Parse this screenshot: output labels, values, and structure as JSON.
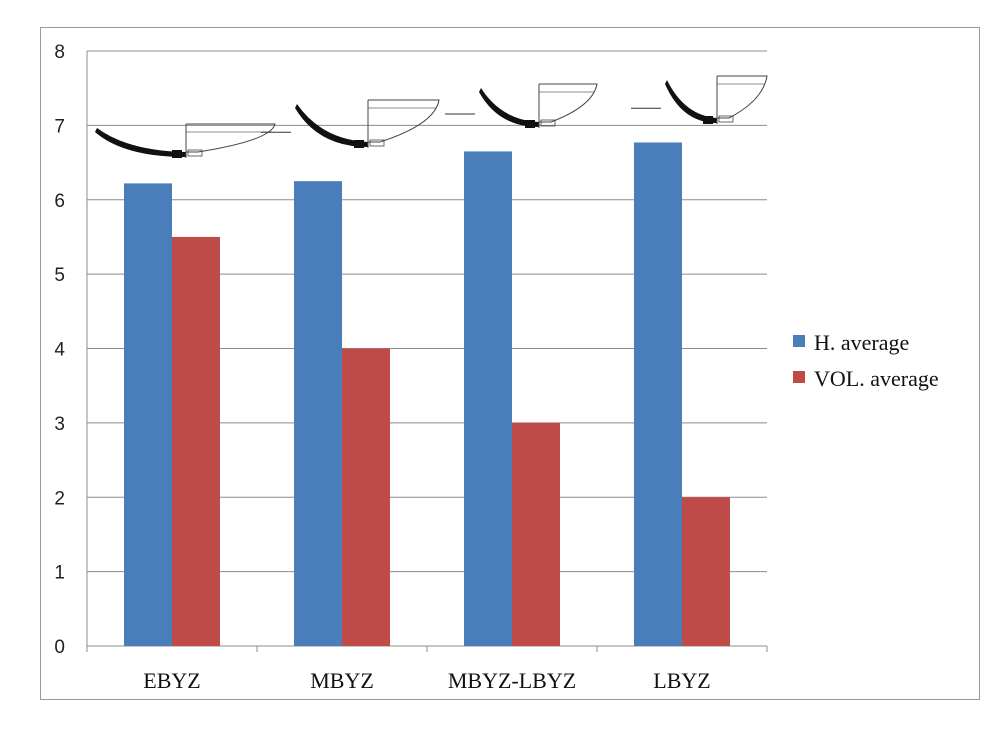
{
  "chart_data": {
    "type": "bar",
    "categories": [
      "EBYZ",
      "MBYZ",
      "MBYZ-LBYZ",
      "LBYZ"
    ],
    "series": [
      {
        "name": "H. average",
        "values": [
          6.22,
          6.25,
          6.65,
          6.77
        ],
        "color": "#4a7ebb"
      },
      {
        "name": "VOL. average",
        "values": [
          5.5,
          4.0,
          3.0,
          2.0
        ],
        "color": "#be4b48"
      }
    ],
    "ylim": [
      0,
      8
    ],
    "yticks": [
      "0",
      "1",
      "2",
      "3",
      "4",
      "5",
      "6",
      "7",
      "8"
    ],
    "grid": true,
    "legend": "right",
    "images": [
      "bowl-profile-icon",
      "bowl-profile-icon",
      "bowl-profile-icon",
      "bowl-profile-icon"
    ]
  }
}
